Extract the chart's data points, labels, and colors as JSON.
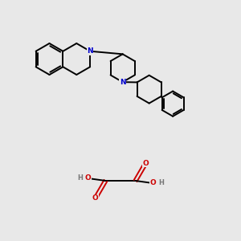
{
  "background_color": "#e8e8e8",
  "bond_color": "#000000",
  "nitrogen_color": "#0000cc",
  "oxygen_color": "#cc0000",
  "hydrogen_color": "#777777",
  "line_width": 1.4,
  "figsize": [
    3.0,
    3.0
  ],
  "dpi": 100,
  "xlim": [
    0,
    10
  ],
  "ylim": [
    0,
    10
  ]
}
